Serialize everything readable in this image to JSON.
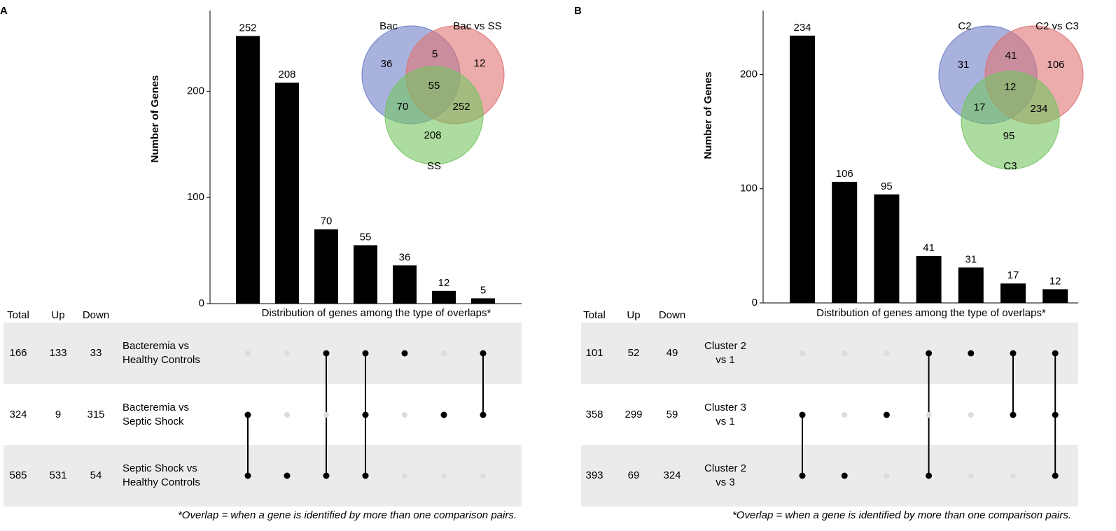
{
  "chart_data": [
    {
      "type": "upset",
      "panel": "A",
      "ylabel": "Number of Genes",
      "xlabel": "Distribution of genes among the type of overlaps*",
      "note": "*Overlap = when a gene is identified by more than one comparison pairs.",
      "values": [
        252,
        208,
        70,
        55,
        36,
        12,
        5
      ],
      "color": "#000000",
      "ylim": [
        0,
        276
      ],
      "yticks": [
        0,
        100,
        200
      ],
      "table_headers": [
        "Total",
        "Up",
        "Down"
      ],
      "sets": [
        {
          "name": [
            "Bacteremia vs",
            "Healthy Controls"
          ],
          "total": 166,
          "up": 133,
          "down": 33
        },
        {
          "name": [
            "Bacteremia vs",
            "Septic Shock"
          ],
          "total": 324,
          "up": 9,
          "down": 315
        },
        {
          "name": [
            "Septic Shock vs",
            "Healthy Controls"
          ],
          "total": 585,
          "up": 531,
          "down": 54
        }
      ],
      "membership": [
        [
          false,
          true,
          true
        ],
        [
          false,
          false,
          true
        ],
        [
          true,
          false,
          true
        ],
        [
          true,
          true,
          true
        ],
        [
          true,
          false,
          false
        ],
        [
          false,
          true,
          false
        ],
        [
          true,
          true,
          false
        ]
      ],
      "venn": {
        "labels": [
          "Bac",
          "Bac vs SS",
          "SS"
        ],
        "colors": [
          "#6f7fc6",
          "#e07474",
          "#74c461"
        ],
        "values": [
          36,
          5,
          12,
          55,
          70,
          252,
          208
        ]
      }
    },
    {
      "type": "upset",
      "panel": "B",
      "ylabel": "Number of Genes",
      "xlabel": "Distribution of genes among the type of overlaps*",
      "note": "*Overlap = when a gene is identified by more than one comparison pairs.",
      "values": [
        234,
        106,
        95,
        41,
        31,
        17,
        12
      ],
      "color": "#000000",
      "ylim": [
        0,
        256
      ],
      "yticks": [
        0,
        100,
        200
      ],
      "table_headers": [
        "Total",
        "Up",
        "Down"
      ],
      "sets": [
        {
          "name": [
            "Cluster 2",
            "vs 1"
          ],
          "total": 101,
          "up": 52,
          "down": 49
        },
        {
          "name": [
            "Cluster 3",
            "vs 1"
          ],
          "total": 358,
          "up": 299,
          "down": 59
        },
        {
          "name": [
            "Cluster 2",
            "vs 3"
          ],
          "total": 393,
          "up": 69,
          "down": 324
        }
      ],
      "membership": [
        [
          false,
          true,
          true
        ],
        [
          false,
          false,
          true
        ],
        [
          false,
          true,
          false
        ],
        [
          true,
          false,
          true
        ],
        [
          true,
          false,
          false
        ],
        [
          true,
          true,
          false
        ],
        [
          true,
          true,
          true
        ]
      ],
      "venn": {
        "labels": [
          "C2",
          "C2 vs C3",
          "C3"
        ],
        "colors": [
          "#6f7fc6",
          "#e07474",
          "#74c461"
        ],
        "values": [
          31,
          41,
          106,
          12,
          17,
          234,
          95
        ]
      }
    }
  ]
}
